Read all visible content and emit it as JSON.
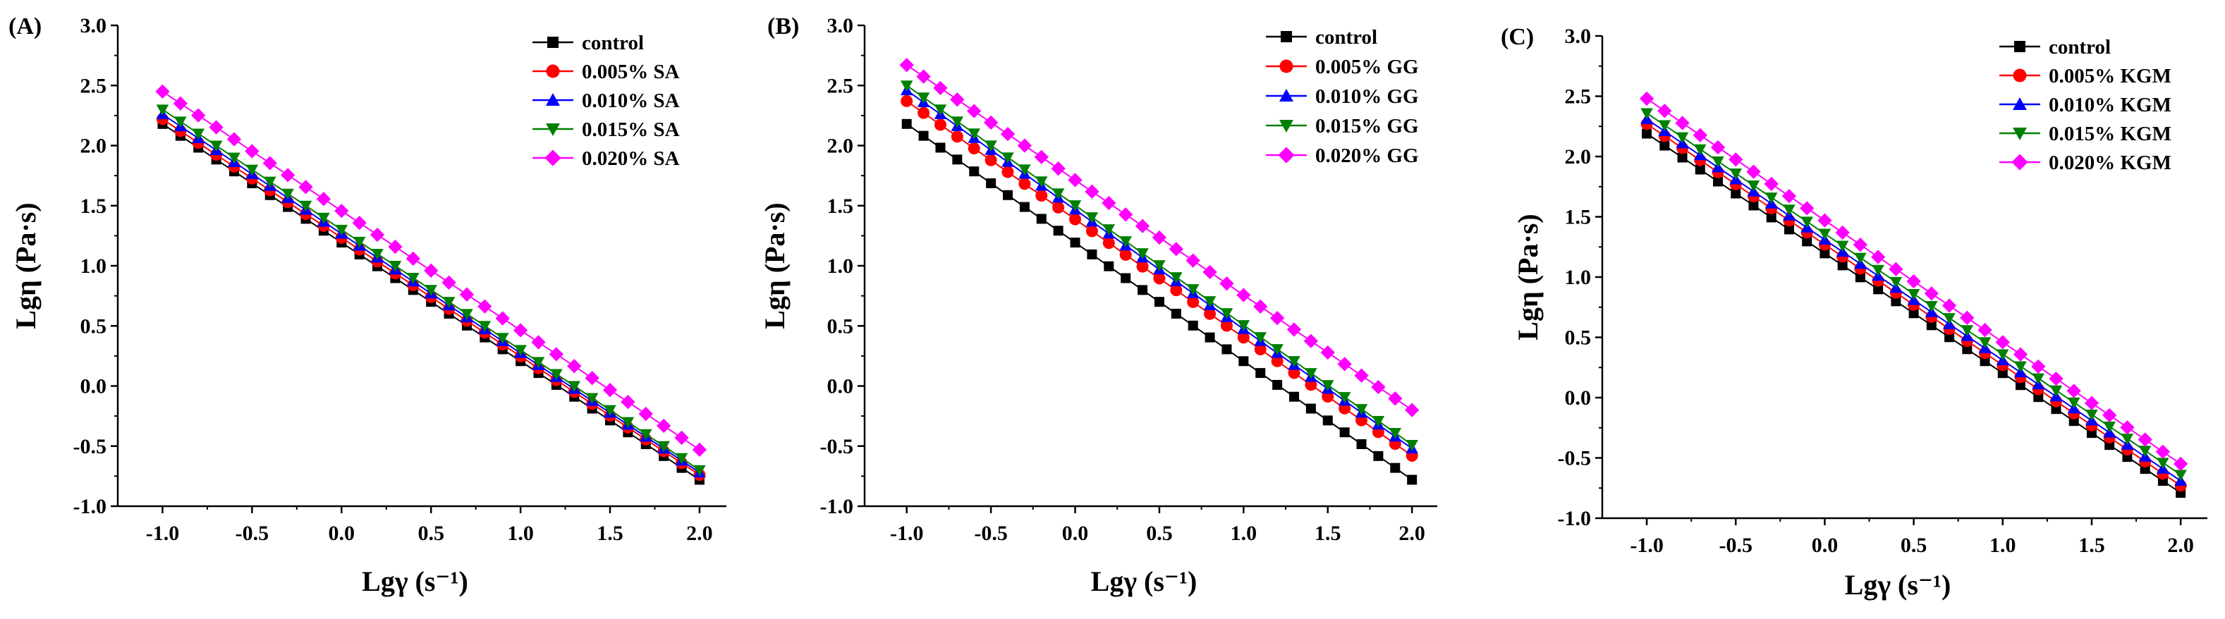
{
  "figure": {
    "colors": {
      "control": "#000000",
      "c005": "#ff0000",
      "c010": "#0000ff",
      "c015": "#008000",
      "c020": "#ff00ff"
    }
  },
  "chart_data": [
    {
      "type": "line",
      "panel_label": "(A)",
      "xlabel": "Lgγ (s⁻¹)",
      "ylabel": "Lgη (Pa·s)",
      "xlim": [
        -1.25,
        2.15
      ],
      "ylim": [
        -1.0,
        3.0
      ],
      "x_ticks": [
        -1.0,
        -0.5,
        0.0,
        0.5,
        1.0,
        1.5,
        2.0
      ],
      "x_tick_labels": [
        "-1.0",
        "-0.5",
        "0.0",
        "0.5",
        "1.0",
        "1.5",
        "2.0"
      ],
      "y_ticks": [
        -1.0,
        -0.5,
        0.0,
        0.5,
        1.0,
        1.5,
        2.0,
        2.5,
        3.0
      ],
      "y_tick_labels": [
        "-1.0",
        "-0.5",
        "0.0",
        "0.5",
        "1.0",
        "1.5",
        "2.0",
        "2.5",
        "3.0"
      ],
      "legend_position": "top-right",
      "x_points": {
        "start": -1.0,
        "end": 2.0,
        "step": 0.1
      },
      "series": [
        {
          "name": "control",
          "marker": "square",
          "color": "#000000",
          "start": 2.18,
          "end": -0.78
        },
        {
          "name": "0.005% SA",
          "marker": "circle",
          "color": "#ff0000",
          "start": 2.22,
          "end": -0.74
        },
        {
          "name": "0.010% SA",
          "marker": "triangle-up",
          "color": "#0000ff",
          "start": 2.26,
          "end": -0.72
        },
        {
          "name": "0.015% SA",
          "marker": "triangle-down",
          "color": "#008000",
          "start": 2.3,
          "end": -0.7
        },
        {
          "name": "0.020% SA",
          "marker": "diamond",
          "color": "#ff00ff",
          "start": 2.45,
          "end": -0.53
        }
      ]
    },
    {
      "type": "line",
      "panel_label": "(B)",
      "xlabel": "Lgγ (s⁻¹)",
      "ylabel": "Lgη (Pa·s)",
      "xlim": [
        -1.25,
        2.15
      ],
      "ylim": [
        -1.0,
        3.0
      ],
      "x_ticks": [
        -1.0,
        -0.5,
        0.0,
        0.5,
        1.0,
        1.5,
        2.0
      ],
      "x_tick_labels": [
        "-1.0",
        "-0.5",
        "0.0",
        "0.5",
        "1.0",
        "1.5",
        "2.0"
      ],
      "y_ticks": [
        -1.0,
        -0.5,
        0.0,
        0.5,
        1.0,
        1.5,
        2.0,
        2.5,
        3.0
      ],
      "y_tick_labels": [
        "-1.0",
        "-0.5",
        "0.0",
        "0.5",
        "1.0",
        "1.5",
        "2.0",
        "2.5",
        "3.0"
      ],
      "legend_position": "top-right",
      "x_points": {
        "start": -1.0,
        "end": 2.0,
        "step": 0.1
      },
      "series": [
        {
          "name": "control",
          "marker": "square",
          "color": "#000000",
          "start": 2.18,
          "end": -0.78
        },
        {
          "name": "0.005% GG",
          "marker": "circle",
          "color": "#ff0000",
          "start": 2.37,
          "end": -0.58
        },
        {
          "name": "0.010% GG",
          "marker": "triangle-up",
          "color": "#0000ff",
          "start": 2.46,
          "end": -0.52
        },
        {
          "name": "0.015% GG",
          "marker": "triangle-down",
          "color": "#008000",
          "start": 2.5,
          "end": -0.49
        },
        {
          "name": "0.020% GG",
          "marker": "diamond",
          "color": "#ff00ff",
          "start": 2.67,
          "end": -0.2
        }
      ]
    },
    {
      "type": "line",
      "panel_label": "(C)",
      "xlabel": "Lgγ (s⁻¹)",
      "ylabel": "Lgη (Pa·s)",
      "xlim": [
        -1.25,
        2.15
      ],
      "ylim": [
        -1.0,
        3.0
      ],
      "x_ticks": [
        -1.0,
        -0.5,
        0.0,
        0.5,
        1.0,
        1.5,
        2.0
      ],
      "x_tick_labels": [
        "-1.0",
        "-0.5",
        "0.0",
        "0.5",
        "1.0",
        "1.5",
        "2.0"
      ],
      "y_ticks": [
        -1.0,
        -0.5,
        0.0,
        0.5,
        1.0,
        1.5,
        2.0,
        2.5,
        3.0
      ],
      "y_tick_labels": [
        "-1.0",
        "-0.5",
        "0.0",
        "0.5",
        "1.0",
        "1.5",
        "2.0",
        "2.5",
        "3.0"
      ],
      "legend_position": "top-right",
      "x_points": {
        "start": -1.0,
        "end": 2.0,
        "step": 0.1
      },
      "series": [
        {
          "name": "control",
          "marker": "square",
          "color": "#000000",
          "start": 2.19,
          "end": -0.79
        },
        {
          "name": "0.005% KGM",
          "marker": "circle",
          "color": "#ff0000",
          "start": 2.27,
          "end": -0.73
        },
        {
          "name": "0.010% KGM",
          "marker": "triangle-up",
          "color": "#0000ff",
          "start": 2.31,
          "end": -0.69
        },
        {
          "name": "0.015% KGM",
          "marker": "triangle-down",
          "color": "#008000",
          "start": 2.36,
          "end": -0.64
        },
        {
          "name": "0.020% KGM",
          "marker": "diamond",
          "color": "#ff00ff",
          "start": 2.48,
          "end": -0.55
        }
      ]
    }
  ]
}
